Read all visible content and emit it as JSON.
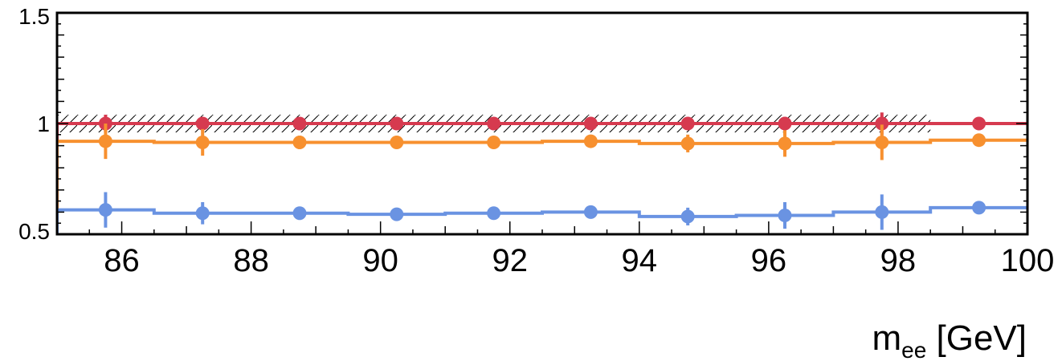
{
  "chart_data": {
    "type": "line",
    "title": "",
    "xlabel_main": "m",
    "xlabel_sub": "ee",
    "xlabel_unit": " [GeV]",
    "ylabel": "",
    "xlim": [
      85,
      100
    ],
    "ylim": [
      0.5,
      1.5
    ],
    "x_ticks": [
      86,
      88,
      90,
      92,
      94,
      96,
      98,
      100
    ],
    "x_tick_labels": [
      "86",
      "88",
      "90",
      "92",
      "94",
      "96",
      "98",
      "100"
    ],
    "y_ticks": [
      0.5,
      1,
      1.5
    ],
    "y_tick_labels": [
      "0.5",
      "1",
      "1.5"
    ],
    "grid": false,
    "legend": "none",
    "bin_edges": [
      85,
      86.5,
      88,
      89.5,
      91,
      92.5,
      94,
      95.5,
      97,
      98.5,
      100
    ],
    "uncertainty_band": {
      "style": "hatched",
      "center": 1.0,
      "half_width": 0.04,
      "x_range": [
        85,
        98.5
      ],
      "color": "#000000"
    },
    "series": [
      {
        "color": "#d63a4f",
        "step_values": [
          1.0,
          1.0,
          1.0,
          1.0,
          1.0,
          1.0,
          1.0,
          1.0,
          1.0,
          1.0
        ],
        "x": [
          85.75,
          87.25,
          88.75,
          90.25,
          91.75,
          93.25,
          94.75,
          96.25,
          97.75,
          99.25
        ],
        "y": [
          1.0,
          1.0,
          1.0,
          1.0,
          1.0,
          1.0,
          1.0,
          1.0,
          1.0,
          1.0
        ],
        "yerr": [
          0.04,
          0.03,
          0.015,
          0.01,
          0.01,
          0.015,
          0.015,
          0.03,
          0.05,
          0.01
        ]
      },
      {
        "color": "#f7902f",
        "step_values": [
          0.92,
          0.915,
          0.915,
          0.915,
          0.915,
          0.92,
          0.91,
          0.91,
          0.915,
          0.925
        ],
        "x": [
          85.75,
          87.25,
          88.75,
          90.25,
          91.75,
          93.25,
          94.75,
          96.25,
          97.75,
          99.25
        ],
        "y": [
          0.92,
          0.915,
          0.915,
          0.915,
          0.915,
          0.92,
          0.91,
          0.91,
          0.915,
          0.925
        ],
        "yerr": [
          0.08,
          0.06,
          0.03,
          0.015,
          0.015,
          0.02,
          0.04,
          0.06,
          0.08,
          0.015
        ]
      },
      {
        "color": "#6a93e2",
        "step_values": [
          0.61,
          0.595,
          0.595,
          0.59,
          0.595,
          0.6,
          0.58,
          0.585,
          0.6,
          0.62
        ],
        "x": [
          85.75,
          87.25,
          88.75,
          90.25,
          91.75,
          93.25,
          94.75,
          96.25,
          97.75,
          99.25
        ],
        "y": [
          0.61,
          0.595,
          0.595,
          0.59,
          0.595,
          0.6,
          0.58,
          0.585,
          0.6,
          0.62
        ],
        "yerr": [
          0.08,
          0.05,
          0.03,
          0.015,
          0.015,
          0.02,
          0.04,
          0.06,
          0.08,
          0.015
        ]
      }
    ]
  }
}
